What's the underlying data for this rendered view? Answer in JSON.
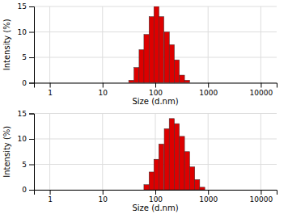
{
  "chart_data": [
    {
      "type": "bar",
      "log": "x",
      "xlabel": "Size (d.nm)",
      "ylabel": "Intensity (%)",
      "x": [
        35,
        44,
        55,
        68,
        85,
        105,
        130,
        165,
        205,
        255,
        320,
        400,
        500
      ],
      "values": [
        0.5,
        3.0,
        6.5,
        9.5,
        13.0,
        15.0,
        13.0,
        10.0,
        7.5,
        4.5,
        1.5,
        0.5,
        0.0
      ],
      "color": "#dd0000",
      "xlim": [
        0.5011872336272722,
        19952.623149688792
      ],
      "xticks": [
        1,
        10,
        100,
        1000,
        10000
      ],
      "ylim": [
        0,
        15
      ],
      "yticks": [
        0,
        5,
        10,
        15
      ],
      "grid": true
    },
    {
      "type": "bar",
      "log": "x",
      "xlabel": "Size (d.nm)",
      "ylabel": "Intensity (%)",
      "x": [
        68,
        85,
        105,
        130,
        165,
        205,
        255,
        320,
        400,
        500,
        620,
        775,
        965
      ],
      "values": [
        1.0,
        3.5,
        6.0,
        9.0,
        12.0,
        14.0,
        13.0,
        10.5,
        7.5,
        4.5,
        2.0,
        0.5,
        0.0
      ],
      "color": "#dd0000",
      "xlim": [
        0.5011872336272722,
        19952.623149688792
      ],
      "xticks": [
        1,
        10,
        100,
        1000,
        10000
      ],
      "ylim": [
        0,
        15
      ],
      "yticks": [
        0,
        5,
        10,
        15
      ],
      "grid": true
    }
  ]
}
